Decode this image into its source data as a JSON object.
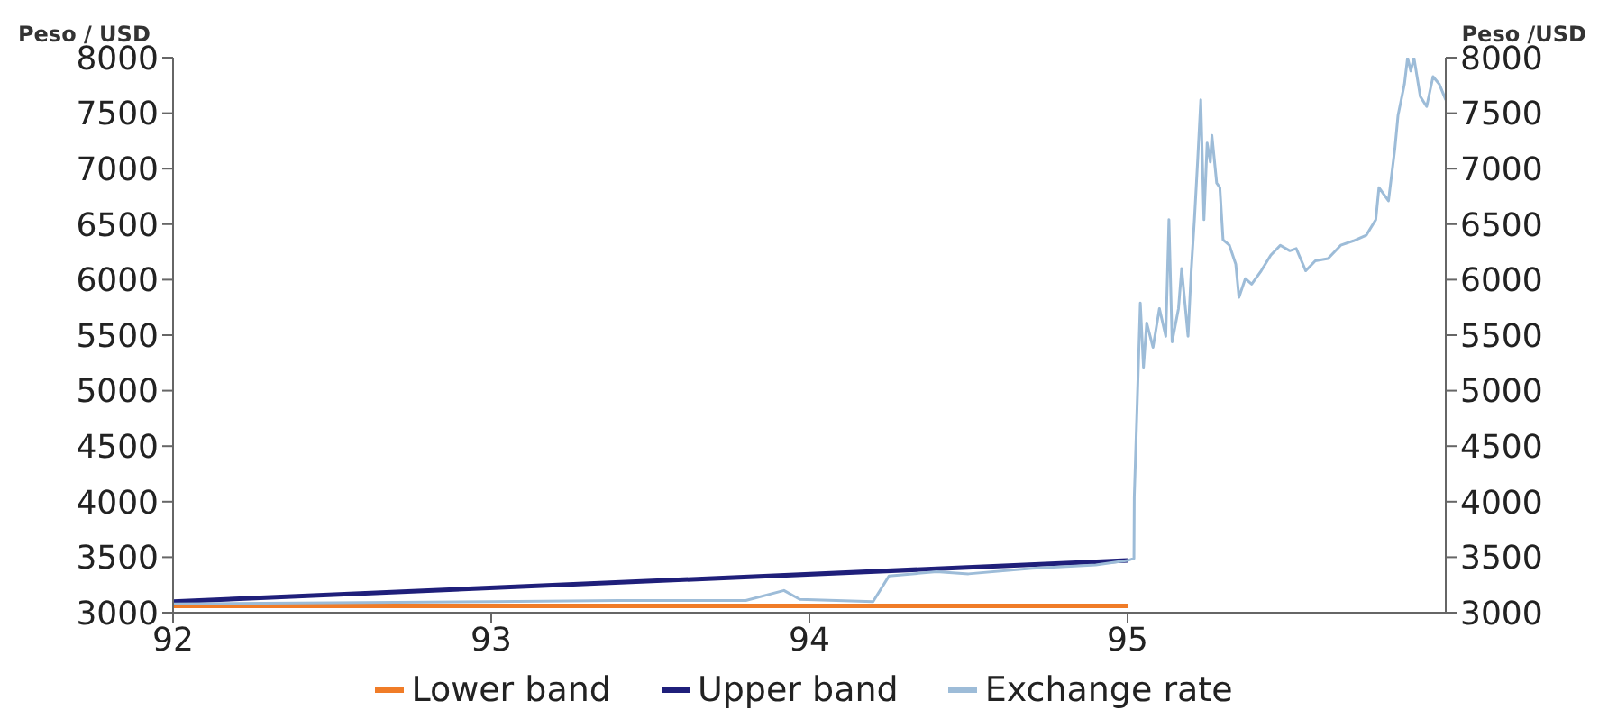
{
  "chart_data": {
    "type": "line",
    "ylabel": "Peso / USD",
    "y2label": "Peso /USD",
    "xlim": [
      92,
      96
    ],
    "xticks": [
      92,
      93,
      94,
      95
    ],
    "ylim": [
      3000,
      8000
    ],
    "yticks": [
      3000,
      3500,
      4000,
      4500,
      5000,
      5500,
      6000,
      6500,
      7000,
      7500,
      8000
    ],
    "y2lim": [
      3000,
      8000
    ],
    "y2ticks": [
      3000,
      3500,
      4000,
      4500,
      5000,
      5500,
      6000,
      6500,
      7000,
      7500,
      8000
    ],
    "grid": false,
    "legend": "bottom",
    "marker": "none",
    "line_style": "solid",
    "series": [
      {
        "name": "Lower band",
        "color": "#f07c28",
        "x": [
          92,
          95
        ],
        "values": [
          3060,
          3060
        ]
      },
      {
        "name": "Upper band",
        "color": "#1f1f7a",
        "x": [
          92,
          95
        ],
        "values": [
          3100,
          3470
        ]
      },
      {
        "name": "Exchange rate",
        "color": "#9dbcd8",
        "x": [
          92.0,
          92.5,
          93.0,
          93.4,
          93.8,
          93.92,
          93.97,
          94.2,
          94.25,
          94.4,
          94.5,
          94.7,
          94.9,
          95.0,
          95.02,
          95.021,
          95.03,
          95.04,
          95.05,
          95.06,
          95.08,
          95.1,
          95.12,
          95.13,
          95.14,
          95.16,
          95.17,
          95.19,
          95.2,
          95.21,
          95.22,
          95.23,
          95.24,
          95.25,
          95.26,
          95.265,
          95.28,
          95.29,
          95.3,
          95.32,
          95.34,
          95.35,
          95.37,
          95.39,
          95.42,
          95.45,
          95.48,
          95.51,
          95.53,
          95.56,
          95.59,
          95.63,
          95.67,
          95.71,
          95.75,
          95.78,
          95.79,
          95.82,
          95.84,
          95.85,
          95.87,
          95.88,
          95.89,
          95.9,
          95.92,
          95.94,
          95.96,
          95.98,
          96.0
        ],
        "values": [
          3080,
          3090,
          3100,
          3110,
          3110,
          3200,
          3120,
          3100,
          3330,
          3370,
          3350,
          3400,
          3430,
          3470,
          3490,
          4040,
          4860,
          5790,
          5210,
          5610,
          5390,
          5740,
          5490,
          6540,
          5440,
          5740,
          6100,
          5490,
          6080,
          6540,
          7060,
          7620,
          6540,
          7230,
          7060,
          7300,
          6870,
          6830,
          6360,
          6310,
          6140,
          5840,
          6010,
          5960,
          6080,
          6220,
          6310,
          6260,
          6280,
          6080,
          6170,
          6190,
          6310,
          6350,
          6400,
          6540,
          6830,
          6710,
          7180,
          7480,
          7760,
          8000,
          7880,
          8000,
          7650,
          7560,
          7830,
          7760,
          7620
        ]
      }
    ]
  }
}
